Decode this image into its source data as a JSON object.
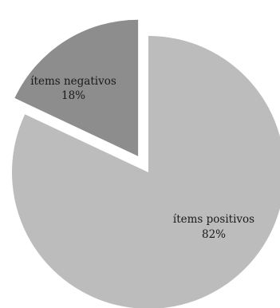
{
  "chart_data": {
    "type": "pie",
    "categories": [
      "ítems positivos",
      "ítems negativos"
    ],
    "values": [
      82,
      18
    ],
    "labels": {
      "positive": {
        "name": "ítems positivos",
        "pct": "82%"
      },
      "negative": {
        "name": "ítems negativos",
        "pct": "18%"
      }
    },
    "colors": {
      "positive": "#bcbcbd",
      "negative": "#8d8d8e"
    },
    "exploded": "ítems negativos",
    "legend": "none"
  }
}
